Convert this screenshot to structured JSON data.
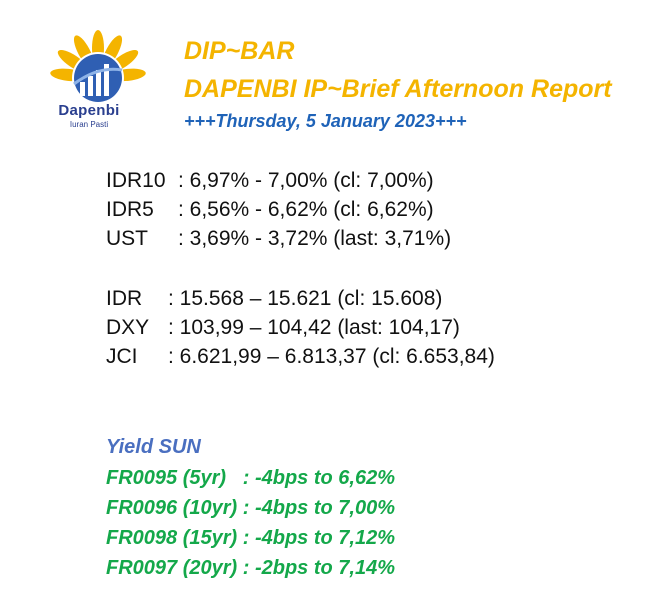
{
  "logo": {
    "name": "Dapenbi",
    "tagline": "Iuran Pasti",
    "colors": {
      "petals": "#f4b400",
      "bars": "#1f63b8",
      "text": "#2a3f8f"
    }
  },
  "header": {
    "title": "DIP~BAR",
    "subtitle": "DAPENBI IP~Brief Afternoon Report",
    "date": "+++Thursday, 5 January 2023+++"
  },
  "rates": [
    {
      "label": "IDR10",
      "value": ": 6,97% - 7,00% (cl: 7,00%)"
    },
    {
      "label": "IDR5",
      "value": ": 6,56% - 6,62% (cl: 6,62%)"
    },
    {
      "label": "UST",
      "value": ": 3,69% - 3,72% (last: 3,71%)"
    }
  ],
  "markets": [
    {
      "label": "IDR",
      "value": ": 15.568 – 15.621 (cl: 15.608)"
    },
    {
      "label": "DXY",
      "value": ": 103,99 – 104,42 (last: 104,17)"
    },
    {
      "label": "JCI",
      "value": ": 6.621,99 – 6.813,37 (cl: 6.653,84)"
    }
  ],
  "yield": {
    "title": "Yield SUN",
    "items": [
      "FR0095 (5yr)   : -4bps to 6,62%",
      "FR0096 (10yr) : -4bps to 7,00%",
      "FR0098 (15yr) : -4bps to 7,12%",
      "FR0097 (20yr) : -2bps to 7,14%"
    ]
  },
  "colors": {
    "header_accent": "#f4b400",
    "date_blue": "#1f63b8",
    "yield_title": "#4a6fc0",
    "yield_green": "#14a84a"
  }
}
